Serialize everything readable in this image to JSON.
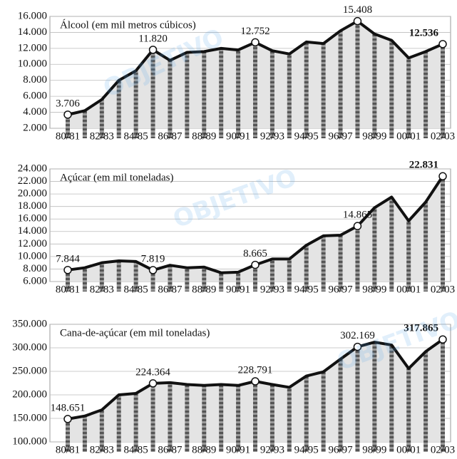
{
  "watermark": "OBJETIVO",
  "chart_data": [
    {
      "type": "line",
      "title": "Álcool (em mil metros cúbicos)",
      "categories": [
        "80/81",
        null,
        "82/83",
        null,
        "84/85",
        null,
        "86/87",
        null,
        "88/89",
        null,
        "90/91",
        null,
        "92/93",
        null,
        "94/95",
        null,
        "96/97",
        null,
        "98/99",
        null,
        "00/01",
        null,
        "02/03"
      ],
      "values": [
        3706,
        4200,
        5600,
        8000,
        9200,
        11820,
        10500,
        11500,
        11600,
        12000,
        11800,
        12752,
        11700,
        11300,
        12800,
        12600,
        14200,
        15408,
        13800,
        13000,
        10800,
        11600,
        12536
      ],
      "value_labels": [
        "3.706",
        null,
        null,
        null,
        null,
        "11.820",
        null,
        null,
        null,
        null,
        null,
        "12.752",
        null,
        null,
        null,
        null,
        null,
        "15.408",
        null,
        null,
        null,
        null,
        "12.536"
      ],
      "ylim": [
        2000,
        16000
      ],
      "yticks": [
        {
          "value": 2000,
          "label": "2.000"
        },
        {
          "value": 4000,
          "label": "4.000"
        },
        {
          "value": 6000,
          "label": "6.000"
        },
        {
          "value": 8000,
          "label": "8.000"
        },
        {
          "value": 10000,
          "label": "10.000"
        },
        {
          "value": 12000,
          "label": "12.000"
        },
        {
          "value": 14000,
          "label": "14.000"
        },
        {
          "value": 16000,
          "label": "16.000"
        }
      ],
      "color": "#111111",
      "grid": true
    },
    {
      "type": "line",
      "title": "Açúcar (em mil toneladas)",
      "categories": [
        "80/81",
        null,
        "82/83",
        null,
        "84/85",
        null,
        "86/87",
        null,
        "88/89",
        null,
        "90/91",
        null,
        "92/93",
        null,
        "94/95",
        null,
        "96/97",
        null,
        "98/99",
        null,
        "00/01",
        null,
        "02/03"
      ],
      "values": [
        7844,
        8200,
        9000,
        9300,
        9200,
        7819,
        8600,
        8200,
        8300,
        7400,
        7500,
        8665,
        9600,
        9600,
        11800,
        13300,
        13400,
        14865,
        17800,
        19500,
        15700,
        18700,
        22831
      ],
      "value_labels": [
        "7.844",
        null,
        null,
        null,
        null,
        "7.819",
        null,
        null,
        null,
        null,
        null,
        "8.665",
        null,
        null,
        null,
        null,
        null,
        "14.865",
        null,
        null,
        null,
        null,
        "22.831"
      ],
      "ylim": [
        6000,
        24000
      ],
      "yticks": [
        {
          "value": 6000,
          "label": "6.000"
        },
        {
          "value": 8000,
          "label": "8.000"
        },
        {
          "value": 10000,
          "label": "10.000"
        },
        {
          "value": 12000,
          "label": "12.000"
        },
        {
          "value": 14000,
          "label": "14.000"
        },
        {
          "value": 16000,
          "label": "16.000"
        },
        {
          "value": 18000,
          "label": "18.000"
        },
        {
          "value": 20000,
          "label": "20.000"
        },
        {
          "value": 22000,
          "label": "22.000"
        },
        {
          "value": 24000,
          "label": "24.000"
        }
      ],
      "color": "#111111",
      "grid": true
    },
    {
      "type": "line",
      "title": "Cana-de-açúcar (em mil toneladas)",
      "categories": [
        "80/81",
        null,
        "82/83",
        null,
        "84/85",
        null,
        "86/87",
        null,
        "88/89",
        null,
        "90/91",
        null,
        "92/93",
        null,
        "94/95",
        null,
        "96/97",
        null,
        "98/99",
        null,
        "00/01",
        null,
        "02/03"
      ],
      "values": [
        148651,
        155000,
        168000,
        200000,
        203000,
        224364,
        226000,
        222000,
        220000,
        222000,
        220000,
        228791,
        222000,
        216000,
        240000,
        249000,
        276000,
        302169,
        312000,
        306000,
        256000,
        292000,
        317865
      ],
      "value_labels": [
        "148.651",
        null,
        null,
        null,
        null,
        "224.364",
        null,
        null,
        null,
        null,
        null,
        "228.791",
        null,
        null,
        null,
        null,
        null,
        "302.169",
        null,
        null,
        null,
        null,
        "317.865"
      ],
      "ylim": [
        100000,
        350000
      ],
      "yticks": [
        {
          "value": 100000,
          "label": "100.000"
        },
        {
          "value": 150000,
          "label": "150.000"
        },
        {
          "value": 200000,
          "label": "200.000"
        },
        {
          "value": 250000,
          "label": "250.000"
        },
        {
          "value": 300000,
          "label": "300.000"
        },
        {
          "value": 350000,
          "label": "350.000"
        }
      ],
      "color": "#111111",
      "grid": true
    }
  ]
}
